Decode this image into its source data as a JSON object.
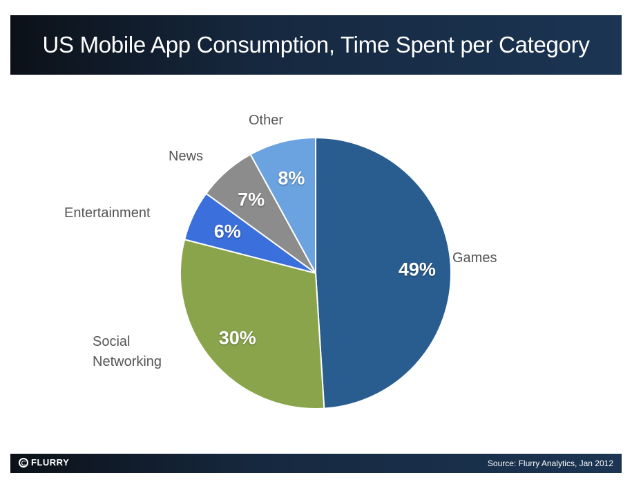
{
  "header": {
    "title": "US Mobile App Consumption, Time Spent per Category"
  },
  "footer": {
    "logo": "FLURRY",
    "source": "Source: Flurry Analytics, Jan 2012"
  },
  "chart_data": {
    "type": "pie",
    "title": "US Mobile App Consumption, Time Spent per Category",
    "start": "top-clockwise",
    "slices": [
      {
        "label": "Games",
        "value": 49,
        "pct": "49%",
        "color": "#2a5d8f"
      },
      {
        "label": "Social Networking",
        "value": 30,
        "pct": "30%",
        "color": "#8aa44c"
      },
      {
        "label": "Entertainment",
        "value": 6,
        "pct": "6%",
        "color": "#3a6fdc"
      },
      {
        "label": "News",
        "value": 7,
        "pct": "7%",
        "color": "#8c8c8c"
      },
      {
        "label": "Other",
        "value": 8,
        "pct": "8%",
        "color": "#6aa3e0"
      }
    ]
  }
}
